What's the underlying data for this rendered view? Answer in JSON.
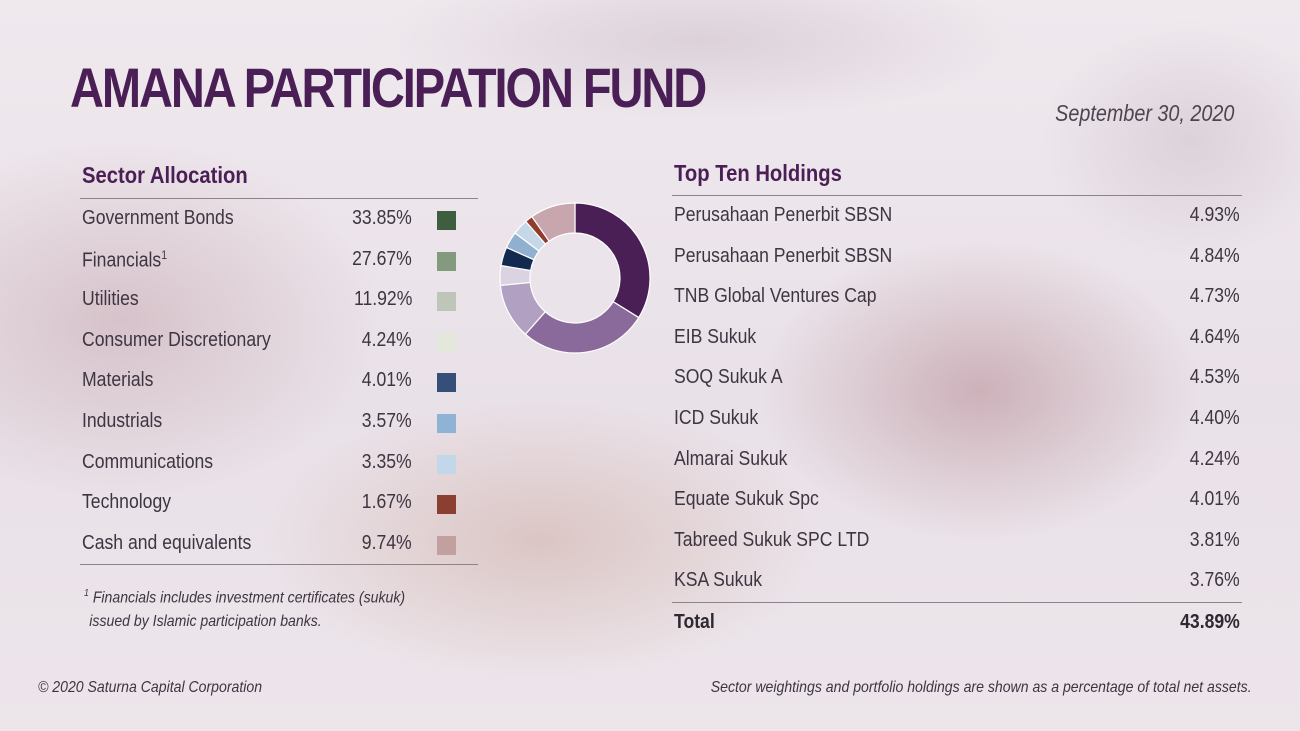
{
  "header": {
    "title": "AMANA PARTICIPATION FUND",
    "date": "September 30, 2020"
  },
  "sector_allocation": {
    "heading": "Sector Allocation",
    "footnote_marker": "1",
    "footnote_lines": [
      "Financials includes investment certificates (sukuk)",
      "issued by Islamic participation banks."
    ]
  },
  "top_holdings": {
    "heading": "Top Ten Holdings",
    "items": [
      {
        "name": "Perusahaan Penerbit SBSN",
        "value": "4.93%"
      },
      {
        "name": "Perusahaan Penerbit SBSN",
        "value": "4.84%"
      },
      {
        "name": "TNB Global Ventures Cap",
        "value": "4.73%"
      },
      {
        "name": "EIB Sukuk",
        "value": "4.64%"
      },
      {
        "name": "SOQ Sukuk A",
        "value": "4.53%"
      },
      {
        "name": "ICD Sukuk",
        "value": "4.40%"
      },
      {
        "name": "Almarai Sukuk",
        "value": "4.24%"
      },
      {
        "name": "Equate Sukuk Spc",
        "value": "4.01%"
      },
      {
        "name": "Tabreed Sukuk SPC LTD",
        "value": "3.81%"
      },
      {
        "name": "KSA Sukuk",
        "value": "3.76%"
      }
    ],
    "total_label": "Total",
    "total_value": "43.89%"
  },
  "footer": {
    "copyright": "© 2020 Saturna Capital Corporation",
    "disclaimer": "Sector weightings and portfolio holdings are shown as a percentage of total net assets."
  },
  "chart_data": {
    "type": "pie",
    "donut": true,
    "start": "top",
    "direction": "clockwise",
    "title": "",
    "categories": [
      "Government Bonds",
      "Financials",
      "Utilities",
      "Consumer Discretionary",
      "Materials",
      "Industrials",
      "Communications",
      "Technology",
      "Cash and equivalents"
    ],
    "values": [
      33.85,
      27.67,
      11.92,
      4.24,
      4.01,
      3.57,
      3.35,
      1.67,
      9.74
    ],
    "labels": [
      "33.85%",
      "27.67%",
      "11.92%",
      "4.24%",
      "4.01%",
      "3.57%",
      "3.35%",
      "1.67%",
      "9.74%"
    ],
    "legend_markers": [
      "",
      "1",
      "",
      "",
      "",
      "",
      "",
      "",
      ""
    ],
    "swatch_colors": [
      "#3e5e3f",
      "#849a7f",
      "#c0c5b9",
      "#e4e7dc",
      "#354f78",
      "#8fb3d4",
      "#c2d7e8",
      "#8a3f30",
      "#c2a0a0"
    ],
    "slice_colors": [
      "#4a1f55",
      "#8a6a9b",
      "#b2a0c2",
      "#dcd3e2",
      "#13294f",
      "#90b0d0",
      "#c6d7e8",
      "#913c2c",
      "#c7a6ad"
    ],
    "legend_position": "left"
  }
}
